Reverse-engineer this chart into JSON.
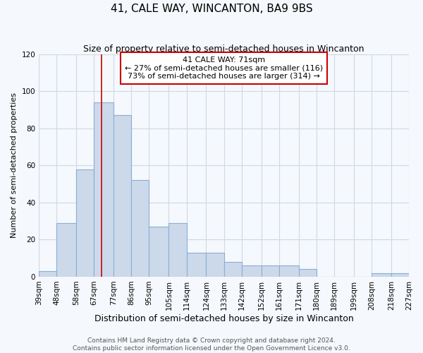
{
  "title": "41, CALE WAY, WINCANTON, BA9 9BS",
  "subtitle": "Size of property relative to semi-detached houses in Wincanton",
  "xlabel": "Distribution of semi-detached houses by size in Wincanton",
  "ylabel": "Number of semi-detached properties",
  "bin_edges": [
    39,
    48,
    58,
    67,
    77,
    86,
    95,
    105,
    114,
    124,
    133,
    142,
    152,
    161,
    171,
    180,
    189,
    199,
    208,
    218,
    227
  ],
  "bar_heights": [
    3,
    29,
    58,
    94,
    87,
    52,
    27,
    29,
    13,
    13,
    8,
    6,
    6,
    6,
    4,
    0,
    0,
    0,
    2,
    2
  ],
  "bar_color": "#ccd9ea",
  "bar_edge_color": "#8aaed4",
  "grid_color": "#d0d8e4",
  "background_color": "#f5f8fc",
  "red_line_x": 71,
  "annotation_text": "41 CALE WAY: 71sqm\n← 27% of semi-detached houses are smaller (116)\n73% of semi-detached houses are larger (314) →",
  "annotation_box_color": "#ffffff",
  "annotation_box_edge_color": "#cc0000",
  "ylim": [
    0,
    120
  ],
  "yticks": [
    0,
    20,
    40,
    60,
    80,
    100,
    120
  ],
  "tick_labels": [
    "39sqm",
    "48sqm",
    "58sqm",
    "67sqm",
    "77sqm",
    "86sqm",
    "95sqm",
    "105sqm",
    "114sqm",
    "124sqm",
    "133sqm",
    "142sqm",
    "152sqm",
    "161sqm",
    "171sqm",
    "180sqm",
    "189sqm",
    "199sqm",
    "208sqm",
    "218sqm",
    "227sqm"
  ],
  "footer_line1": "Contains HM Land Registry data © Crown copyright and database right 2024.",
  "footer_line2": "Contains public sector information licensed under the Open Government Licence v3.0.",
  "title_fontsize": 11,
  "subtitle_fontsize": 9,
  "xlabel_fontsize": 9,
  "ylabel_fontsize": 8,
  "tick_fontsize": 7.5,
  "annotation_fontsize": 8,
  "footer_fontsize": 6.5
}
